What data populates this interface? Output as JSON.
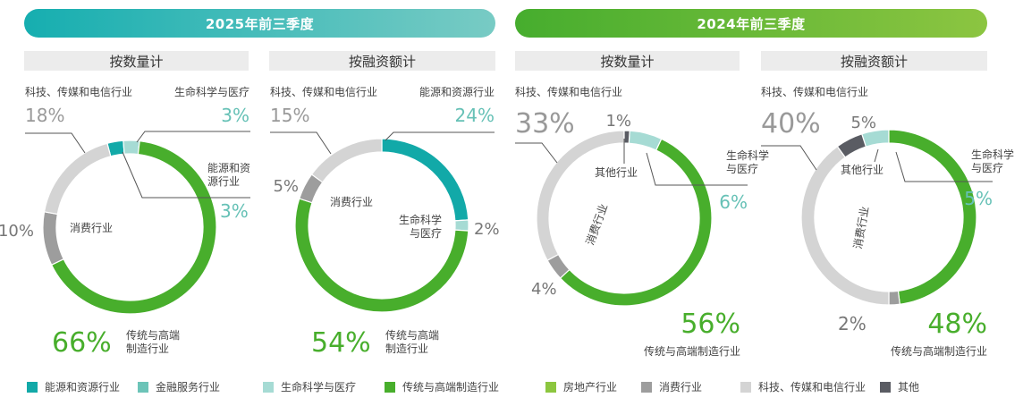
{
  "colors": {
    "energy": "#12a9a8",
    "finance": "#6cc4b8",
    "life": "#a6dbd4",
    "manufacturing": "#48ae2c",
    "realestate": "#8cc63f",
    "consumer": "#9d9d9d",
    "tech": "#d4d4d4",
    "other": "#5a5c63"
  },
  "header": {
    "period_2025": "2025年前三季度",
    "period_2024": "2024年前三季度"
  },
  "chart_data": [
    {
      "type": "pie",
      "variant": "donut",
      "period": "2025年前三季度",
      "title": "按数量计",
      "slices": [
        {
          "name": "能源和资源行业",
          "value": 3,
          "label": "3%",
          "caption": "能源和资\n源行业",
          "color_key": "energy"
        },
        {
          "name": "生命科学与医疗",
          "value": 3,
          "label": "3%",
          "caption": "生命科学与医疗",
          "color_key": "life"
        },
        {
          "name": "传统与高端制造行业",
          "value": 66,
          "label": "66%",
          "caption": "传统与高端\n制造行业",
          "color_key": "manufacturing"
        },
        {
          "name": "消费行业",
          "value": 10,
          "label": "10%",
          "caption": "消费行业",
          "color_key": "consumer"
        },
        {
          "name": "科技、传媒和电信行业",
          "value": 18,
          "label": "18%",
          "caption": "科技、传媒和电信行业",
          "color_key": "tech"
        }
      ]
    },
    {
      "type": "pie",
      "variant": "donut",
      "period": "2025年前三季度",
      "title": "按融资额计",
      "slices": [
        {
          "name": "能源和资源行业",
          "value": 24,
          "label": "24%",
          "caption": "能源和资源行业",
          "color_key": "energy"
        },
        {
          "name": "生命科学与医疗",
          "value": 2,
          "label": "2%",
          "caption": "生命科学\n与医疗",
          "color_key": "life"
        },
        {
          "name": "传统与高端制造行业",
          "value": 54,
          "label": "54%",
          "caption": "传统与高端\n制造行业",
          "color_key": "manufacturing"
        },
        {
          "name": "消费行业",
          "value": 5,
          "label": "5%",
          "caption": "消费行业",
          "color_key": "consumer"
        },
        {
          "name": "科技、传媒和电信行业",
          "value": 15,
          "label": "15%",
          "caption": "科技、传媒和电信行业",
          "color_key": "tech"
        }
      ]
    },
    {
      "type": "pie",
      "variant": "donut",
      "period": "2024年前三季度",
      "title": "按数量计",
      "slices": [
        {
          "name": "生命科学与医疗",
          "value": 6,
          "label": "6%",
          "caption": "生命科学\n与医疗",
          "color_key": "life"
        },
        {
          "name": "传统与高端制造行业",
          "value": 56,
          "label": "56%",
          "caption": "传统与高端制造行业",
          "color_key": "manufacturing"
        },
        {
          "name": "消费行业",
          "value": 4,
          "label": "4%",
          "caption": "消费行业",
          "color_key": "consumer"
        },
        {
          "name": "科技、传媒和电信行业",
          "value": 33,
          "label": "33%",
          "caption": "科技、传媒和电信行业",
          "color_key": "tech"
        },
        {
          "name": "其他",
          "value": 1,
          "label": "1%",
          "caption": "其他行业",
          "color_key": "other"
        }
      ]
    },
    {
      "type": "pie",
      "variant": "donut",
      "period": "2024年前三季度",
      "title": "按融资额计",
      "slices": [
        {
          "name": "生命科学与医疗",
          "value": 5,
          "label": "5%",
          "caption": "生命科学\n与医疗",
          "color_key": "life"
        },
        {
          "name": "传统与高端制造行业",
          "value": 48,
          "label": "48%",
          "caption": "传统与高端制造行业",
          "color_key": "manufacturing"
        },
        {
          "name": "消费行业",
          "value": 2,
          "label": "2%",
          "caption": "消费行业",
          "color_key": "consumer"
        },
        {
          "name": "科技、传媒和电信行业",
          "value": 40,
          "label": "40%",
          "caption": "科技、传媒和电信行业",
          "color_key": "tech"
        },
        {
          "name": "其他",
          "value": 5,
          "label": "5%",
          "caption": "其他行业",
          "color_key": "other"
        }
      ]
    }
  ],
  "legend": [
    {
      "label": "能源和资源行业",
      "color_key": "energy"
    },
    {
      "label": "金融服务行业",
      "color_key": "finance"
    },
    {
      "label": "生命科学与医疗",
      "color_key": "life"
    },
    {
      "label": "传统与高端制造行业",
      "color_key": "manufacturing"
    },
    {
      "label": "房地产行业",
      "color_key": "realestate"
    },
    {
      "label": "消费行业",
      "color_key": "consumer"
    },
    {
      "label": "科技、传媒和电信行业",
      "color_key": "tech"
    },
    {
      "label": "其他",
      "color_key": "other"
    }
  ]
}
